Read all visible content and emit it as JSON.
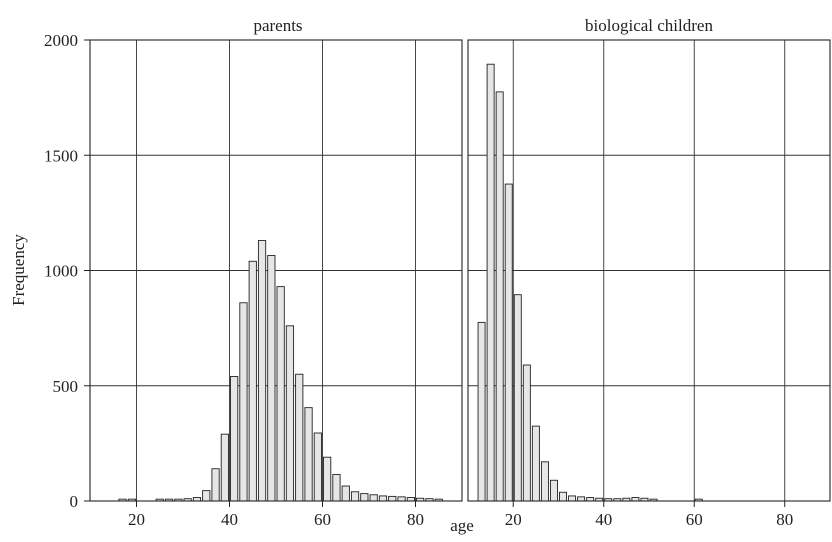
{
  "chart_data": {
    "type": "bar",
    "ylabel": "Frequency",
    "xlabel": "age",
    "ylim": [
      0,
      2000
    ],
    "xlim": [
      10,
      90
    ],
    "y_ticks": [
      0,
      500,
      1000,
      1500,
      2000
    ],
    "x_ticks": [
      20,
      40,
      60,
      80
    ],
    "grid": true,
    "bin_width": 2,
    "panels": [
      {
        "title": "parents",
        "bins": [
          {
            "x": 17,
            "value": 8
          },
          {
            "x": 19,
            "value": 8
          },
          {
            "x": 25,
            "value": 8
          },
          {
            "x": 27,
            "value": 8
          },
          {
            "x": 29,
            "value": 8
          },
          {
            "x": 31,
            "value": 10
          },
          {
            "x": 33,
            "value": 15
          },
          {
            "x": 35,
            "value": 45
          },
          {
            "x": 37,
            "value": 140
          },
          {
            "x": 39,
            "value": 290
          },
          {
            "x": 41,
            "value": 540
          },
          {
            "x": 43,
            "value": 860
          },
          {
            "x": 45,
            "value": 1040
          },
          {
            "x": 47,
            "value": 1130
          },
          {
            "x": 49,
            "value": 1065
          },
          {
            "x": 51,
            "value": 930
          },
          {
            "x": 53,
            "value": 760
          },
          {
            "x": 55,
            "value": 550
          },
          {
            "x": 57,
            "value": 405
          },
          {
            "x": 59,
            "value": 295
          },
          {
            "x": 61,
            "value": 190
          },
          {
            "x": 63,
            "value": 115
          },
          {
            "x": 65,
            "value": 65
          },
          {
            "x": 67,
            "value": 40
          },
          {
            "x": 69,
            "value": 32
          },
          {
            "x": 71,
            "value": 27
          },
          {
            "x": 73,
            "value": 22
          },
          {
            "x": 75,
            "value": 20
          },
          {
            "x": 77,
            "value": 18
          },
          {
            "x": 79,
            "value": 15
          },
          {
            "x": 81,
            "value": 12
          },
          {
            "x": 83,
            "value": 10
          },
          {
            "x": 85,
            "value": 8
          }
        ]
      },
      {
        "title": "biological children",
        "bins": [
          {
            "x": 13,
            "value": 775
          },
          {
            "x": 15,
            "value": 1895
          },
          {
            "x": 17,
            "value": 1775
          },
          {
            "x": 19,
            "value": 1375
          },
          {
            "x": 21,
            "value": 895
          },
          {
            "x": 23,
            "value": 590
          },
          {
            "x": 25,
            "value": 325
          },
          {
            "x": 27,
            "value": 170
          },
          {
            "x": 29,
            "value": 90
          },
          {
            "x": 31,
            "value": 38
          },
          {
            "x": 33,
            "value": 22
          },
          {
            "x": 35,
            "value": 18
          },
          {
            "x": 37,
            "value": 15
          },
          {
            "x": 39,
            "value": 12
          },
          {
            "x": 41,
            "value": 10
          },
          {
            "x": 43,
            "value": 10
          },
          {
            "x": 45,
            "value": 12
          },
          {
            "x": 47,
            "value": 15
          },
          {
            "x": 49,
            "value": 12
          },
          {
            "x": 51,
            "value": 8
          },
          {
            "x": 61,
            "value": 8
          }
        ]
      }
    ]
  }
}
